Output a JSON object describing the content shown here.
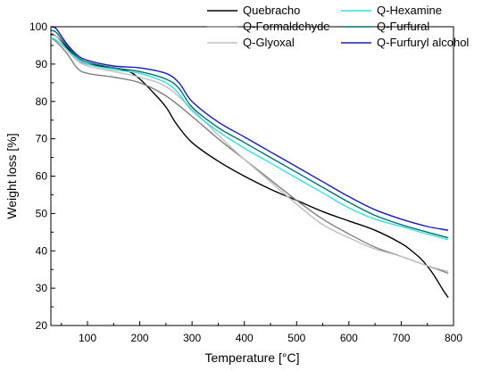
{
  "chart_data": {
    "type": "line",
    "xlabel": "Temperature [°C]",
    "ylabel": "Weight loss [%]",
    "xlim": [
      30,
      800
    ],
    "ylim": [
      20,
      100
    ],
    "xticks": [
      100,
      200,
      300,
      400,
      500,
      600,
      700,
      800
    ],
    "yticks": [
      20,
      30,
      40,
      50,
      60,
      70,
      80,
      90,
      100
    ],
    "grid": false,
    "legend_position": "top-right, two columns",
    "series": [
      {
        "name": "Quebracho",
        "color": "#000000",
        "x": [
          30,
          40,
          60,
          80,
          100,
          150,
          180,
          200,
          225,
          250,
          270,
          300,
          350,
          400,
          450,
          500,
          550,
          600,
          650,
          700,
          720,
          740,
          760,
          780,
          790
        ],
        "y": [
          98,
          97.5,
          94.5,
          91.5,
          90,
          89,
          88,
          86,
          82.5,
          78.5,
          74,
          69,
          64,
          60,
          56.5,
          53.5,
          50.5,
          48,
          45.5,
          42,
          40,
          37.5,
          34,
          29.5,
          27.5
        ]
      },
      {
        "name": "Q-Formaldehyde",
        "color": "#7f7f7f",
        "x": [
          30,
          40,
          60,
          80,
          100,
          150,
          200,
          250,
          300,
          350,
          400,
          450,
          500,
          550,
          600,
          650,
          700,
          750,
          790
        ],
        "y": [
          97,
          96,
          93,
          89,
          87.5,
          86.5,
          85,
          81.5,
          76,
          70,
          64.5,
          59,
          53.5,
          48.5,
          44.5,
          41,
          38.5,
          36,
          34
        ]
      },
      {
        "name": "Q-Glyoxal",
        "color": "#bfbfbf",
        "x": [
          30,
          40,
          60,
          80,
          100,
          150,
          200,
          250,
          300,
          350,
          400,
          450,
          500,
          550,
          600,
          650,
          700,
          750,
          790
        ],
        "y": [
          98.5,
          97.5,
          94,
          91,
          89.5,
          88,
          86.5,
          84,
          78,
          71,
          64.5,
          58.5,
          52.5,
          47,
          43.5,
          40.5,
          38.5,
          36,
          34.5
        ]
      },
      {
        "name": "Q-Hexamine",
        "color": "#33e0e0",
        "x": [
          30,
          40,
          60,
          80,
          100,
          150,
          200,
          250,
          275,
          300,
          350,
          400,
          450,
          500,
          550,
          600,
          650,
          700,
          750,
          790
        ],
        "y": [
          97,
          96.5,
          94,
          91.5,
          90,
          88.5,
          87.5,
          85,
          82,
          77.5,
          72,
          67.5,
          63.5,
          59.5,
          55.5,
          51.5,
          48.5,
          46.5,
          44.5,
          43
        ]
      },
      {
        "name": "Q-Furfural",
        "color": "#007070",
        "x": [
          30,
          40,
          60,
          80,
          100,
          150,
          200,
          250,
          275,
          300,
          350,
          400,
          450,
          500,
          550,
          600,
          650,
          700,
          750,
          790
        ],
        "y": [
          99,
          98.5,
          95,
          92,
          90.5,
          89,
          88,
          86,
          83.5,
          78.5,
          73,
          69,
          65,
          61,
          57,
          53,
          49.5,
          47,
          45,
          43.5
        ]
      },
      {
        "name": "Q-Furfuryl alcohol",
        "color": "#1a1ab8",
        "x": [
          30,
          40,
          60,
          80,
          100,
          150,
          200,
          250,
          275,
          300,
          350,
          400,
          450,
          500,
          550,
          600,
          650,
          700,
          750,
          790
        ],
        "y": [
          100,
          99.5,
          95.5,
          92.5,
          91,
          89.5,
          89,
          87.5,
          85,
          80,
          74.5,
          70.5,
          66.5,
          62.5,
          58.5,
          54.5,
          51,
          48.5,
          46.5,
          45.5
        ]
      }
    ]
  }
}
